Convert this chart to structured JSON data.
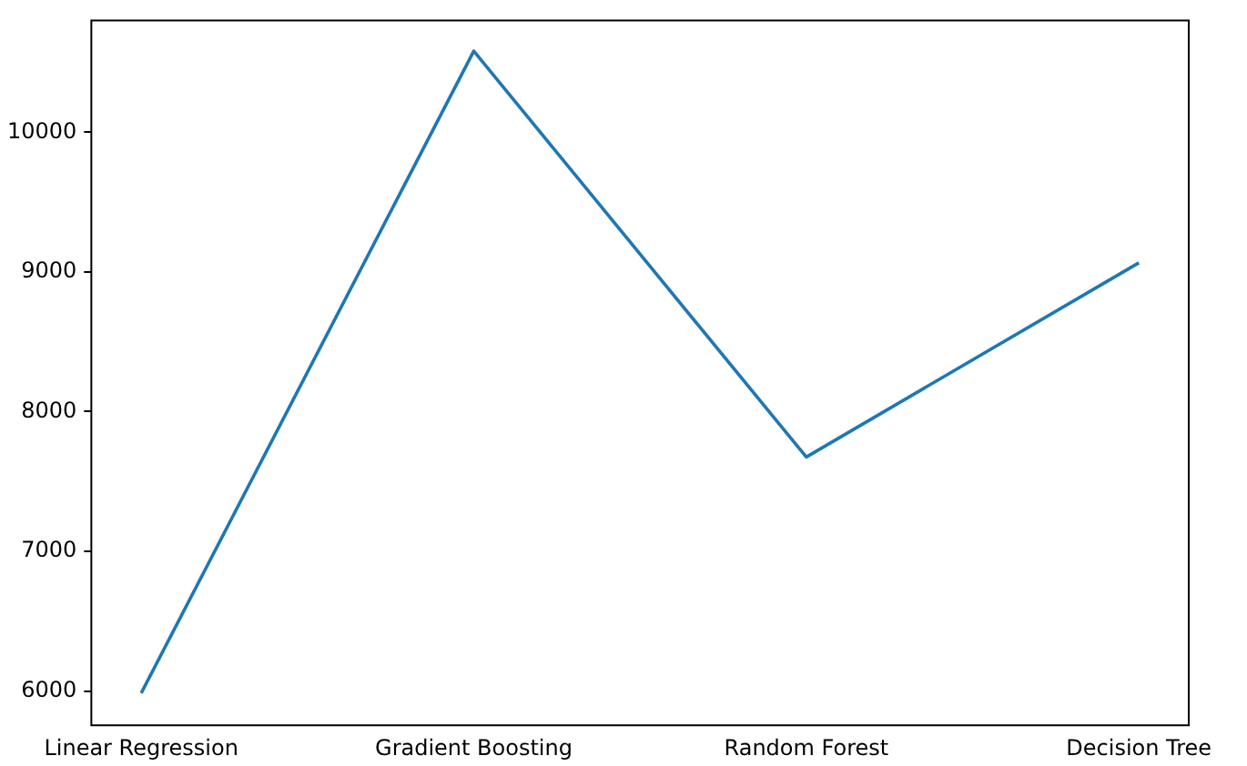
{
  "chart_data": {
    "type": "line",
    "categories": [
      "Linear Regression",
      "Gradient Boosting",
      "Random Forest",
      "Decision Tree"
    ],
    "series": [
      {
        "color": "#1f77b4",
        "values": [
          5985,
          10580,
          7675,
          9065
        ]
      }
    ],
    "ylim": [
      5755,
      10800
    ],
    "yticks": [
      6000,
      7000,
      8000,
      9000,
      10000
    ],
    "grid": false,
    "legend": false,
    "marker": "none",
    "line_style": "solid"
  }
}
